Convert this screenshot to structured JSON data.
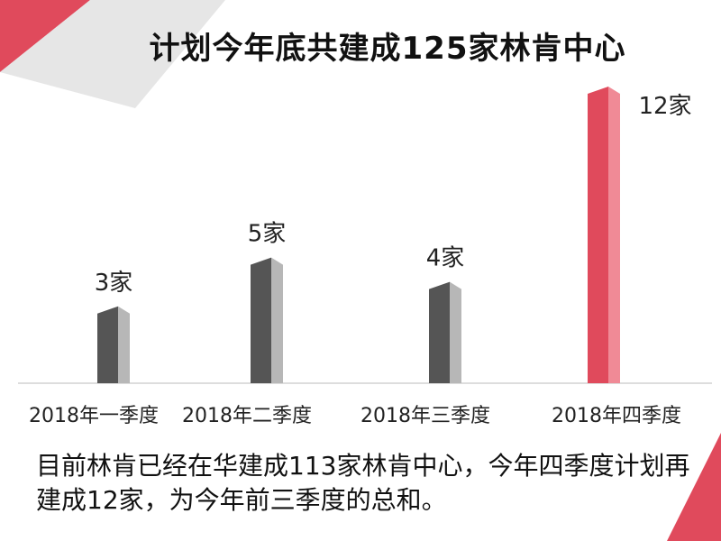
{
  "slide": {
    "title": "计划今年底共建成125家林肯中心",
    "caption": "目前林肯已经在华建成113家林肯中心，今年四季度计划再建成12家，为今年前三季度的总和。"
  },
  "colors": {
    "accent": "#e04a5c",
    "accent_highlight": "#f08a96",
    "bar_dark": "#555555",
    "bar_light": "#b7b7b7",
    "corner_gray": "#e6e6e6"
  },
  "chart_data": {
    "type": "bar",
    "title": "",
    "categories": [
      "2018年一季度",
      "2018年二季度",
      "2018年三季度",
      "2018年四季度"
    ],
    "values": [
      3,
      5,
      4,
      12
    ],
    "value_labels": [
      "3家",
      "5家",
      "4家",
      "12家"
    ],
    "highlight_index": 3,
    "xlabel": "",
    "ylabel": "",
    "ylim": [
      0,
      12
    ],
    "grid": false,
    "legend": "none"
  }
}
